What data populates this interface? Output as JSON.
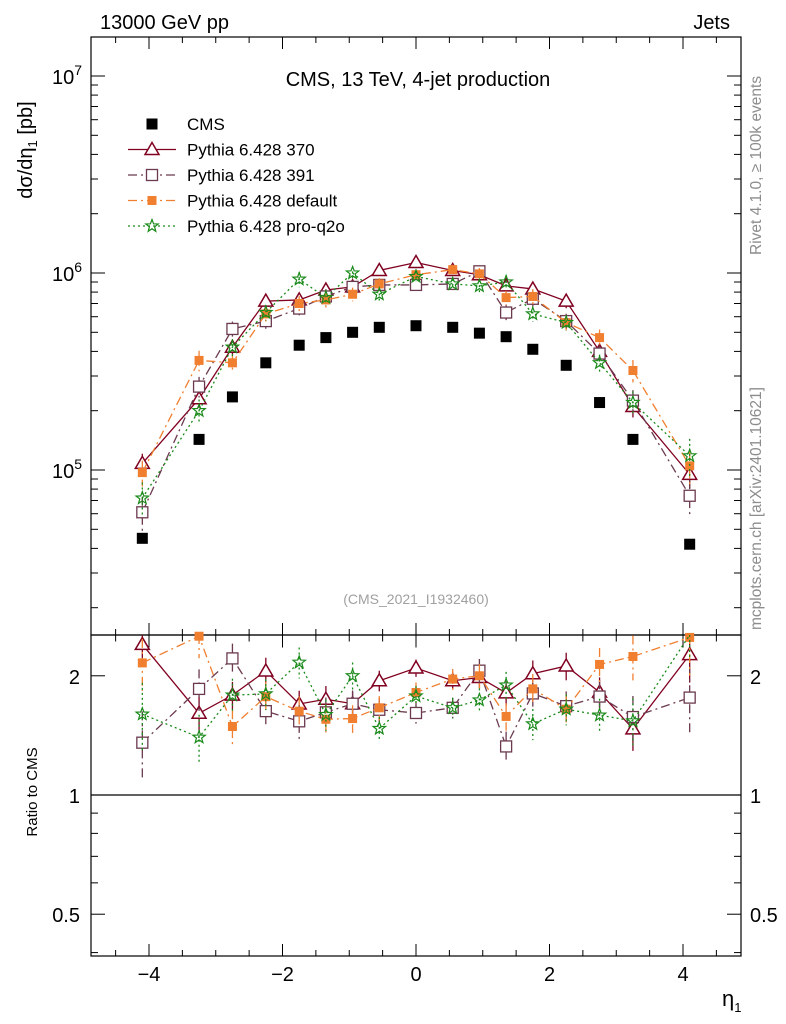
{
  "header": {
    "left": "13000 GeV pp",
    "right": "Jets"
  },
  "side_labels": {
    "rivet": "Rivet 4.1.0, ≥ 100k events",
    "mcplots": "mcplots.cern.ch [arXiv:2401.10621]"
  },
  "chart_data": {
    "type": "scatter",
    "title": "CMS, 13 TeV, 4-jet production",
    "analysis_tag": "(CMS_2021_I1932460)",
    "xlabel": "η1",
    "ylabel": "dσ/dη1 [pb]",
    "xlim": [
      -5,
      5
    ],
    "ylim": [
      20000,
      16000000
    ],
    "yscale": "log",
    "x_ticks": [
      "−4",
      "−2",
      "0",
      "2",
      "4"
    ],
    "y_ticks": [
      "10^5",
      "10^6",
      "10^7"
    ],
    "x": [
      -4.1,
      -3.25,
      -2.75,
      -2.25,
      -1.75,
      -1.35,
      -0.95,
      -0.55,
      0,
      0.55,
      0.95,
      1.35,
      1.75,
      2.25,
      2.75,
      3.25,
      4.1
    ],
    "series": [
      {
        "name": "CMS",
        "color": "#000000",
        "marker": "filled-square",
        "line": "none",
        "values": [
          45000,
          143000,
          235000,
          350000,
          430000,
          470000,
          500000,
          530000,
          540000,
          530000,
          495000,
          475000,
          410000,
          340000,
          220000,
          143000,
          42000
        ],
        "errors": [
          0,
          0,
          0,
          0,
          0,
          0,
          0,
          0,
          0,
          0,
          0,
          0,
          0,
          0,
          0,
          0,
          0
        ]
      },
      {
        "name": "Pythia 6.428 370",
        "color": "#800020",
        "marker": "open-triangle",
        "line": "solid",
        "values": [
          108000,
          230000,
          420000,
          720000,
          730000,
          820000,
          850000,
          1030000,
          1130000,
          1030000,
          980000,
          860000,
          830000,
          720000,
          400000,
          210000,
          95000
        ],
        "errors": [
          0.12,
          0.1,
          0.08,
          0.08,
          0.08,
          0.08,
          0.07,
          0.06,
          0.05,
          0.05,
          0.06,
          0.07,
          0.08,
          0.08,
          0.09,
          0.12,
          0.15
        ]
      },
      {
        "name": "Pythia 6.428 391",
        "color": "#6b3a4f",
        "marker": "open-square",
        "line": "dashdot",
        "values": [
          61000,
          265000,
          520000,
          570000,
          660000,
          760000,
          850000,
          870000,
          870000,
          880000,
          1020000,
          630000,
          740000,
          570000,
          390000,
          225000,
          74000
        ],
        "errors": [
          0.2,
          0.12,
          0.09,
          0.09,
          0.1,
          0.09,
          0.08,
          0.07,
          0.06,
          0.06,
          0.07,
          0.09,
          0.09,
          0.09,
          0.1,
          0.13,
          0.2
        ]
      },
      {
        "name": "Pythia 6.428 default",
        "color": "#f07f30",
        "marker": "filled-small-square",
        "line": "dashdot",
        "values": [
          97000,
          360000,
          350000,
          620000,
          700000,
          730000,
          780000,
          880000,
          980000,
          1040000,
          990000,
          750000,
          760000,
          560000,
          470000,
          320000,
          105000
        ],
        "errors": [
          0.15,
          0.12,
          0.1,
          0.09,
          0.09,
          0.09,
          0.08,
          0.07,
          0.06,
          0.06,
          0.07,
          0.08,
          0.09,
          0.09,
          0.1,
          0.13,
          0.2
        ]
      },
      {
        "name": "Pythia 6.428 pro-q2o",
        "color": "#1a8a1a",
        "marker": "open-star",
        "line": "dotted",
        "values": [
          72000,
          200000,
          420000,
          630000,
          930000,
          750000,
          1000000,
          780000,
          960000,
          880000,
          860000,
          900000,
          620000,
          560000,
          350000,
          220000,
          118000
        ],
        "errors": [
          0.2,
          0.14,
          0.1,
          0.09,
          0.09,
          0.09,
          0.08,
          0.07,
          0.06,
          0.06,
          0.07,
          0.08,
          0.09,
          0.09,
          0.1,
          0.14,
          0.22
        ]
      }
    ],
    "ratio_panel": {
      "ylabel": "Ratio to CMS",
      "ylim": [
        0.4,
        2.4
      ],
      "y_ticks": [
        "0.5",
        "1",
        "2"
      ]
    }
  }
}
